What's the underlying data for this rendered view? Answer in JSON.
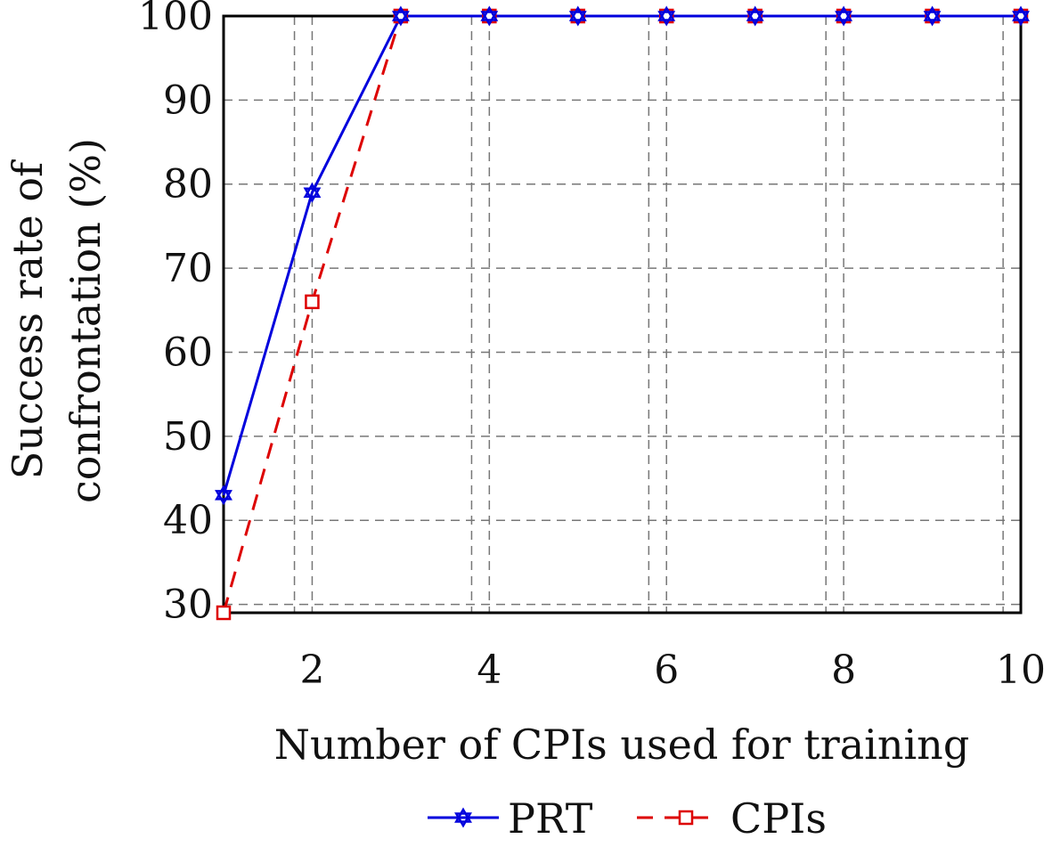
{
  "chart_data": {
    "type": "line",
    "xlabel": "Number of CPIs used for training",
    "ylabel": [
      "Success rate of",
      "confrontation (%)"
    ],
    "xlim": [
      1,
      10
    ],
    "ylim": [
      29,
      100
    ],
    "xticks": [
      2,
      4,
      6,
      8,
      10
    ],
    "yticks": [
      30,
      40,
      50,
      60,
      70,
      80,
      90,
      100
    ],
    "extra_vertical_gridlines": [
      1.8,
      3.8,
      5.8,
      7.8,
      9.8
    ],
    "grid": true,
    "legend_position": "bottom-center",
    "series": [
      {
        "name": "PRT",
        "color": "#0000dd",
        "line_style": "solid",
        "marker": "star",
        "x": [
          1,
          2,
          3,
          4,
          5,
          6,
          7,
          8,
          9,
          10
        ],
        "values": [
          43,
          79,
          100,
          100,
          100,
          100,
          100,
          100,
          100,
          100
        ]
      },
      {
        "name": "CPIs",
        "color": "#dd0000",
        "line_style": "dashed",
        "marker": "square",
        "x": [
          1,
          2,
          3,
          4,
          5,
          6,
          7,
          8,
          9,
          10
        ],
        "values": [
          29,
          66,
          100,
          100,
          100,
          100,
          100,
          100,
          100,
          100
        ]
      }
    ]
  }
}
